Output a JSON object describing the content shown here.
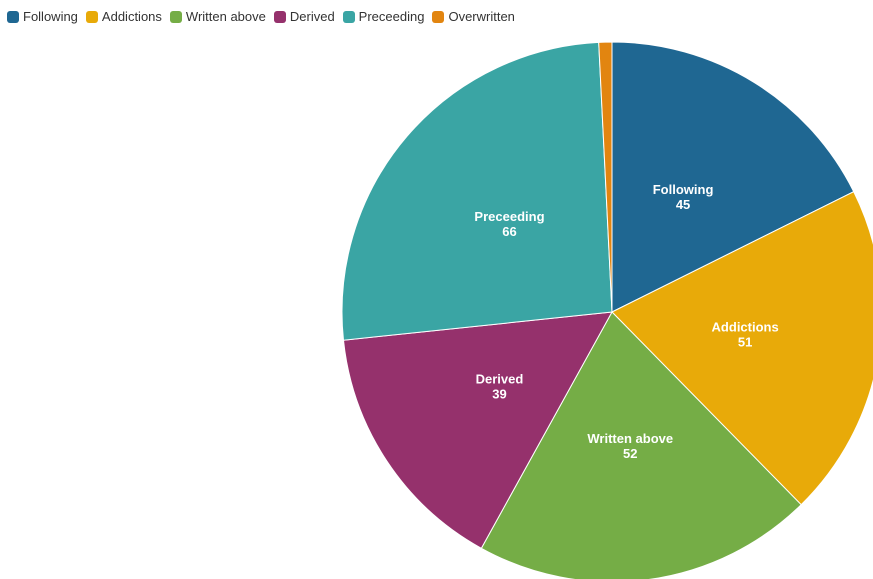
{
  "chart_data": {
    "type": "pie",
    "title": "",
    "legend_position": "top-left",
    "slices": [
      {
        "name": "Following",
        "value": 45,
        "color": "#1f6792",
        "show_label": true
      },
      {
        "name": "Addictions",
        "value": 51,
        "color": "#e8aa09",
        "show_label": true
      },
      {
        "name": "Written above",
        "value": 52,
        "color": "#75ad46",
        "show_label": true
      },
      {
        "name": "Derived",
        "value": 39,
        "color": "#95316c",
        "show_label": true
      },
      {
        "name": "Preceeding",
        "value": 66,
        "color": "#3aa5a4",
        "show_label": true
      },
      {
        "name": "Overwritten",
        "value": 2,
        "color": "#e28510",
        "show_label": false
      }
    ]
  }
}
